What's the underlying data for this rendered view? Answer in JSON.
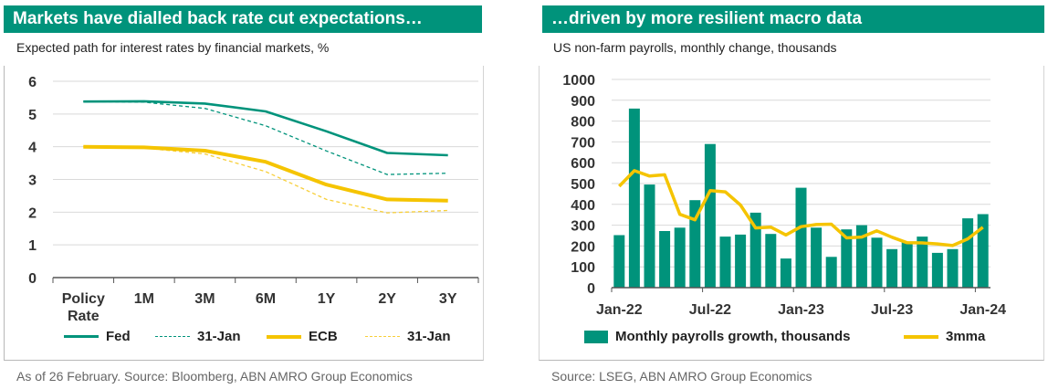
{
  "left": {
    "title": "Markets have dialled back rate cut expectations…",
    "subtitle": "Expected path for interest rates by financial markets, %",
    "source": "As of 26 February. Source: Bloomberg, ABN AMRO Group Economics",
    "legend": [
      "Fed",
      "31-Jan",
      "ECB",
      "31-Jan"
    ]
  },
  "right": {
    "title": "…driven by more resilient macro data",
    "subtitle": "US non-farm payrolls, monthly change, thousands",
    "source": "Source: LSEG, ABN AMRO Group Economics",
    "legend": [
      "Monthly payrolls growth, thousands",
      "3mma"
    ]
  },
  "colors": {
    "teal": "#00937b",
    "yellow": "#f5c400",
    "lightYellow": "#f7cf3a",
    "grid": "#d9d9d9"
  },
  "chart_data": [
    {
      "type": "line",
      "categories": [
        [
          "Policy",
          "Rate"
        ],
        [
          "1M"
        ],
        [
          "3M"
        ],
        [
          "6M"
        ],
        [
          "1Y"
        ],
        [
          "2Y"
        ],
        [
          "3Y"
        ]
      ],
      "ylim": [
        0,
        6
      ],
      "yticks": [
        0,
        1,
        2,
        3,
        4,
        5,
        6
      ],
      "series": [
        {
          "name": "Fed",
          "values": [
            5.38,
            5.39,
            5.32,
            5.08,
            4.47,
            3.81,
            3.74
          ],
          "style": "solid-teal"
        },
        {
          "name": "31-Jan",
          "values": [
            5.38,
            5.36,
            5.17,
            4.64,
            3.87,
            3.15,
            3.19
          ],
          "style": "dashed-teal"
        },
        {
          "name": "ECB",
          "values": [
            4.0,
            3.98,
            3.88,
            3.54,
            2.84,
            2.39,
            2.35
          ],
          "style": "solid-yellow"
        },
        {
          "name": "31-Jan",
          "values": [
            4.0,
            3.96,
            3.78,
            3.24,
            2.39,
            1.98,
            2.05
          ],
          "style": "dashed-yellow"
        }
      ]
    },
    {
      "type": "bar",
      "xlabels": [
        "Jan-22",
        "Jul-22",
        "Jan-23",
        "Jul-23",
        "Jan-24"
      ],
      "ylim": [
        0,
        1000
      ],
      "yticks": [
        0,
        100,
        200,
        300,
        400,
        500,
        600,
        700,
        800,
        900,
        1000
      ],
      "bars": [
        {
          "name": "Monthly payrolls growth, thousands",
          "values": [
            252,
            860,
            495,
            272,
            288,
            420,
            690,
            245,
            255,
            360,
            258,
            140,
            480,
            288,
            148,
            280,
            300,
            240,
            185,
            220,
            245,
            167,
            185,
            333,
            353
          ]
        }
      ],
      "series": [
        {
          "name": "3mma",
          "values": [
            487,
            562,
            536,
            542,
            352,
            326,
            466,
            460,
            397,
            287,
            291,
            253,
            293,
            303,
            305,
            239,
            243,
            273,
            242,
            216,
            215,
            210,
            202,
            234,
            290
          ]
        }
      ]
    }
  ]
}
